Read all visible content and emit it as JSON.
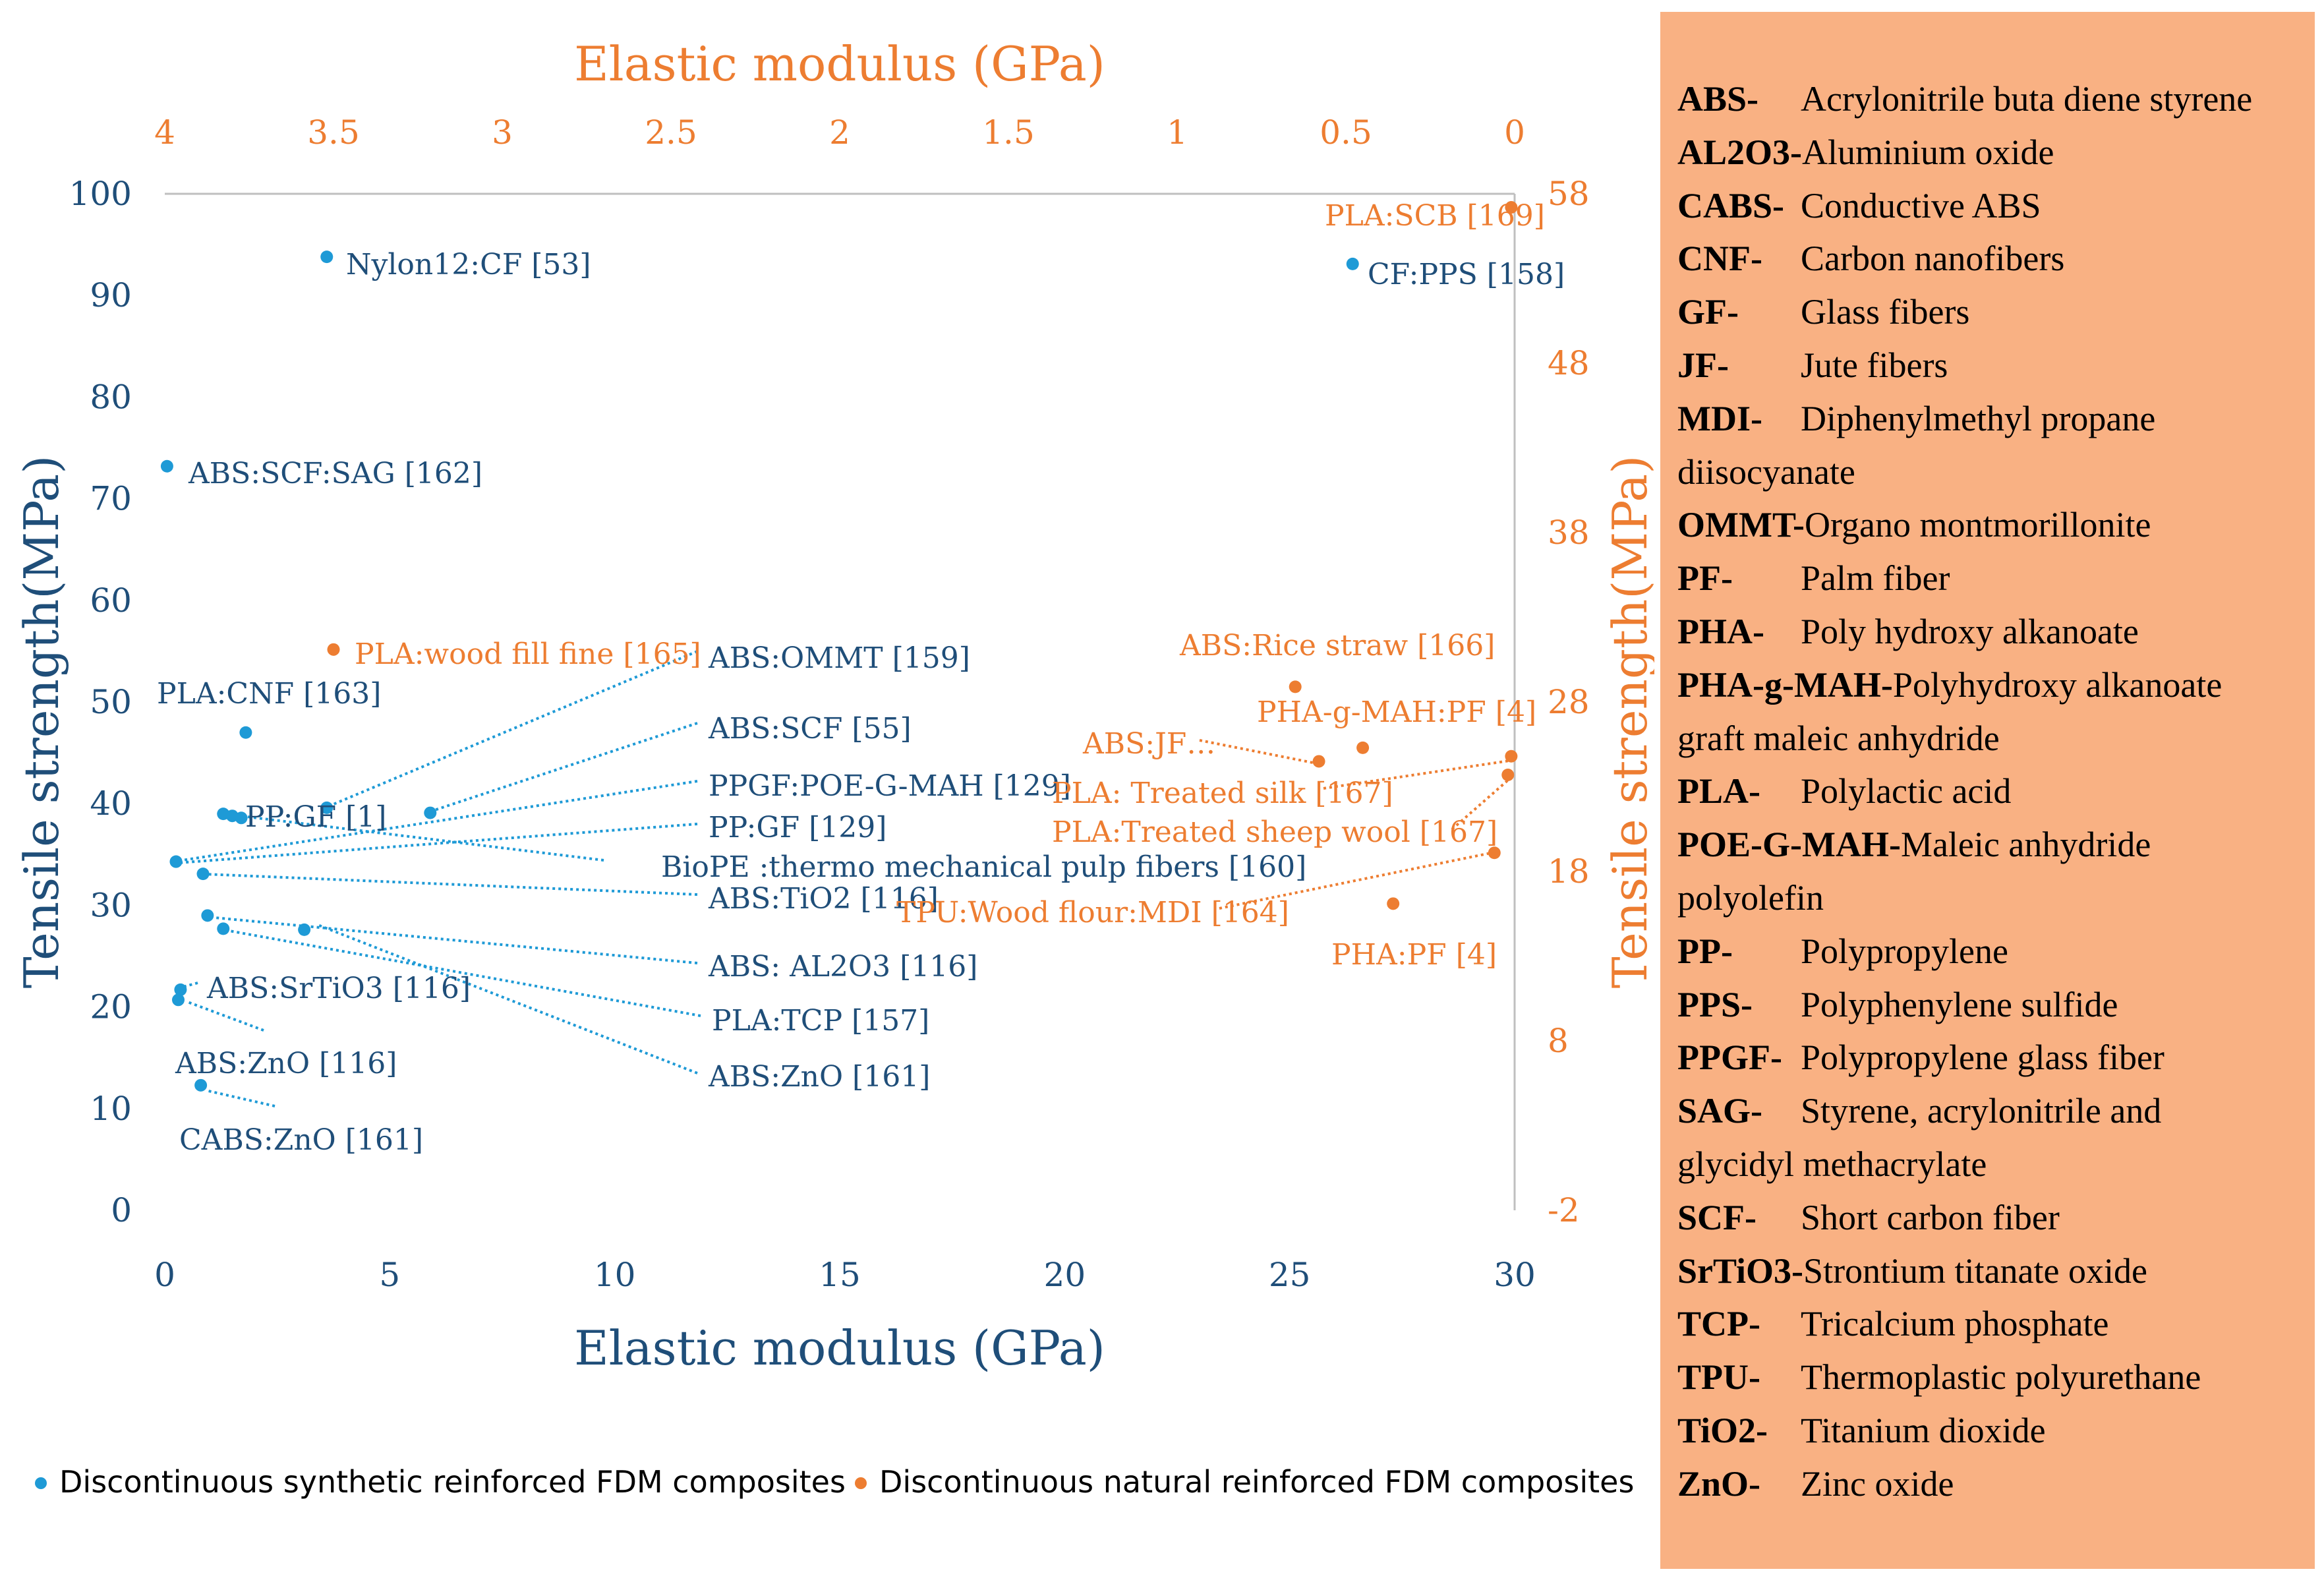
{
  "colors": {
    "synthetic": "#1e9ad6",
    "natural": "#ed7d31",
    "primary_axis": "#1f4e79",
    "secondary_axis": "#ed7d31",
    "panel": "#f9b183"
  },
  "chart_data": {
    "type": "scatter",
    "title": "",
    "primary_x": {
      "label": "Elastic modulus (GPa)",
      "range": [
        0,
        30
      ],
      "ticks": [
        "0",
        "5",
        "10",
        "15",
        "20",
        "25",
        "30"
      ]
    },
    "primary_y": {
      "label": "Tensile strength(MPa)",
      "range": [
        0,
        100
      ],
      "ticks": [
        "0",
        "10",
        "20",
        "30",
        "40",
        "50",
        "60",
        "70",
        "80",
        "90",
        "100"
      ]
    },
    "secondary_x": {
      "label": "Elastic modulus (GPa)",
      "range": [
        4,
        0
      ],
      "reversed": true,
      "ticks": [
        "4",
        "3.5",
        "3",
        "2.5",
        "2",
        "1.5",
        "1",
        "0.5",
        "0"
      ]
    },
    "secondary_y": {
      "label": "Tensile strength(MPa)",
      "range": [
        -2,
        58
      ],
      "ticks": [
        "-2",
        "8",
        "18",
        "28",
        "38",
        "48",
        "58"
      ]
    },
    "series": [
      {
        "name": "Discontinuous synthetic reinforced FDM composites",
        "axes": "primary",
        "points": [
          {
            "label": "Nylon12:CF [53]",
            "x": 3.6,
            "y": 93.8
          },
          {
            "label": "CF:PPS [158]",
            "x": 26.4,
            "y": 93.1
          },
          {
            "label": "ABS:SCF:SAG [162]",
            "x": 0.05,
            "y": 73.2
          },
          {
            "label": "PLA:CNF [163]",
            "x": 1.8,
            "y": 47
          },
          {
            "label": "PP:GF [1]",
            "x": 1.3,
            "y": 39
          },
          {
            "label": "PP:GF [1]",
            "x": 1.5,
            "y": 38.8
          },
          {
            "label": "ABS:OMMT [159]",
            "x": 3.6,
            "y": 39.6
          },
          {
            "label": "ABS:SCF [55]",
            "x": 5.9,
            "y": 39.1
          },
          {
            "label": "PPGF:POE-G-MAH [129]",
            "x": 0.25,
            "y": 34.3
          },
          {
            "label": "PP:GF [129]",
            "x": 0.25,
            "y": 34.3
          },
          {
            "label": "BioPE :thermo mechanical pulp fibers [160]",
            "x": 1.7,
            "y": 38.6
          },
          {
            "label": "ABS:TiO2 [116]",
            "x": 0.85,
            "y": 33.1
          },
          {
            "label": "ABS: AL2O3 [116]",
            "x": 0.95,
            "y": 29
          },
          {
            "label": "PLA:TCP [157]",
            "x": 1.3,
            "y": 27.7
          },
          {
            "label": "ABS:ZnO [161]",
            "x": 3.1,
            "y": 27.6
          },
          {
            "label": "ABS:SrTiO3 [116]",
            "x": 0.35,
            "y": 21.7
          },
          {
            "label": "ABS:ZnO [116]",
            "x": 0.3,
            "y": 20.7
          },
          {
            "label": "CABS:ZnO [161]",
            "x": 0.8,
            "y": 12.3
          }
        ]
      },
      {
        "name": "Discontinuous natural reinforced FDM composites",
        "axes": "secondary",
        "points": [
          {
            "label": "PLA:SCB [169]",
            "x": 0.01,
            "y": 57.2
          },
          {
            "label": "PLA:wood fill fine [165]",
            "x": 3.5,
            "y": 31.1
          },
          {
            "label": "ABS:Rice straw [166]",
            "x": 0.65,
            "y": 28.9
          },
          {
            "label": "PHA-g-MAH:PF [4]",
            "x": 0.45,
            "y": 25.3
          },
          {
            "label": "ABS:JF…",
            "x": 0.58,
            "y": 24.5
          },
          {
            "label": "PLA: Treated silk [167]",
            "x": 0.01,
            "y": 24.8
          },
          {
            "label": "PLA:Treated sheep wool [167]",
            "x": 0.02,
            "y": 23.7
          },
          {
            "label": "TPU:Wood flour:MDI [164]",
            "x": 0.06,
            "y": 19.1
          },
          {
            "label": "PHA:PF [4]",
            "x": 0.36,
            "y": 16.1
          }
        ]
      }
    ],
    "legend": {
      "position": "bottom-left",
      "entries": [
        "Discontinuous synthetic reinforced FDM composites",
        "Discontinuous natural reinforced FDM composites"
      ]
    }
  },
  "abbreviations": [
    {
      "key": "ABS-",
      "def": "Acrylonitrile buta diene styrene"
    },
    {
      "key": "AL2O3-",
      "def": "Aluminium oxide"
    },
    {
      "key": "CABS-",
      "def": "Conductive ABS"
    },
    {
      "key": "CNF-",
      "def": "Carbon nanofibers"
    },
    {
      "key": "GF-",
      "def": "Glass fibers"
    },
    {
      "key": "JF-",
      "def": "Jute fibers"
    },
    {
      "key": "MDI-",
      "def": "Diphenylmethyl propane"
    },
    {
      "key": "",
      "def": "diisocyanate"
    },
    {
      "key": "OMMT-",
      "def": "Organo montmorillonite"
    },
    {
      "key": "PF-",
      "def": "Palm fiber"
    },
    {
      "key": "PHA-",
      "def": "Poly hydroxy alkanoate"
    },
    {
      "key": "PHA-g-MAH-",
      "def": "Polyhydroxy alkanoate"
    },
    {
      "key": "",
      "def": "graft maleic anhydride"
    },
    {
      "key": "PLA-",
      "def": "Polylactic acid"
    },
    {
      "key": "POE-G-MAH-",
      "def": "Maleic anhydride"
    },
    {
      "key": "",
      "def": "polyolefin"
    },
    {
      "key": "PP-",
      "def": "Polypropylene"
    },
    {
      "key": "PPS-",
      "def": "Polyphenylene sulfide"
    },
    {
      "key": "PPGF-",
      "def": "Polypropylene glass fiber"
    },
    {
      "key": "SAG-",
      "def": "Styrene, acrylonitrile and"
    },
    {
      "key": "",
      "def": "glycidyl methacrylate"
    },
    {
      "key": "SCF-",
      "def": "Short carbon fiber"
    },
    {
      "key": "SrTiO3-",
      "def": "Strontium titanate oxide"
    },
    {
      "key": "TCP-",
      "def": "Tricalcium phosphate"
    },
    {
      "key": "TPU-",
      "def": "Thermoplastic polyurethane"
    },
    {
      "key": "TiO2-",
      "def": "Titanium dioxide"
    },
    {
      "key": "ZnO-",
      "def": "Zinc oxide"
    }
  ]
}
